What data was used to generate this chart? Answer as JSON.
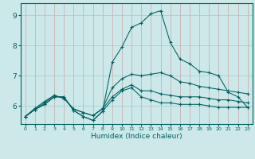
{
  "title": "",
  "xlabel": "Humidex (Indice chaleur)",
  "ylabel": "",
  "background_color": "#cce8e8",
  "vgrid_color": "#c8a8a8",
  "hgrid_color": "#a0cccc",
  "line_color": "#006060",
  "x_ticks": [
    0,
    1,
    2,
    3,
    4,
    5,
    6,
    7,
    8,
    9,
    10,
    11,
    12,
    13,
    14,
    15,
    16,
    17,
    18,
    19,
    20,
    21,
    22,
    23
  ],
  "y_ticks": [
    6,
    7,
    8,
    9
  ],
  "xlim": [
    -0.5,
    23.5
  ],
  "ylim": [
    5.4,
    9.4
  ],
  "series": [
    [
      5.65,
      5.88,
      6.05,
      6.3,
      6.3,
      5.85,
      5.65,
      5.52,
      5.82,
      6.2,
      6.5,
      6.6,
      6.3,
      6.2,
      6.1,
      6.1,
      6.05,
      6.05,
      6.05,
      6.0,
      5.95,
      5.95,
      5.95,
      5.95
    ],
    [
      5.65,
      5.88,
      6.05,
      6.3,
      6.3,
      5.85,
      5.65,
      5.52,
      5.82,
      7.45,
      7.95,
      8.6,
      8.75,
      9.05,
      9.15,
      8.1,
      7.55,
      7.4,
      7.15,
      7.1,
      7.0,
      6.45,
      6.3,
      5.95
    ],
    [
      5.65,
      5.88,
      6.1,
      6.35,
      6.25,
      5.9,
      5.78,
      5.68,
      5.9,
      6.3,
      6.55,
      6.7,
      6.5,
      6.5,
      6.4,
      6.35,
      6.3,
      6.3,
      6.3,
      6.25,
      6.2,
      6.2,
      6.15,
      6.1
    ],
    [
      5.65,
      5.92,
      6.15,
      6.35,
      6.25,
      5.9,
      5.78,
      5.68,
      5.92,
      6.6,
      6.9,
      7.05,
      7.0,
      7.05,
      7.1,
      7.0,
      6.8,
      6.75,
      6.65,
      6.6,
      6.55,
      6.5,
      6.45,
      6.4
    ]
  ]
}
